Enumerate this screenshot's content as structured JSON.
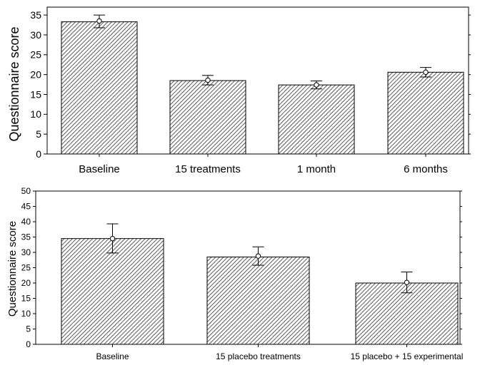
{
  "chart_data": [
    {
      "type": "bar",
      "title": "",
      "ylabel": "Questionnaire score",
      "xlabel": "",
      "categories": [
        "Baseline",
        "15 treatments",
        "1 month",
        "6 months"
      ],
      "values": [
        33.3,
        18.5,
        17.4,
        20.6
      ],
      "means": [
        33.5,
        18.6,
        17.4,
        20.6
      ],
      "error_low": [
        31.8,
        17.4,
        16.4,
        19.4
      ],
      "error_high": [
        35.0,
        19.8,
        18.4,
        21.8
      ],
      "ylim": [
        0,
        37
      ],
      "yticks": [
        0,
        5,
        10,
        15,
        20,
        25,
        30,
        35
      ],
      "grid": false,
      "bar_fill": "hatched"
    },
    {
      "type": "bar",
      "title": "",
      "ylabel": "Questionnaire score",
      "xlabel": "",
      "categories": [
        "Baseline",
        "15 placebo treatments",
        "15 placebo + 15 experimental"
      ],
      "values": [
        34.5,
        28.5,
        20.0
      ],
      "means": [
        34.5,
        28.8,
        20.2
      ],
      "error_low": [
        29.8,
        25.8,
        16.8
      ],
      "error_high": [
        39.3,
        31.8,
        23.6
      ],
      "ylim": [
        0,
        50
      ],
      "yticks": [
        0,
        5,
        10,
        15,
        20,
        25,
        30,
        35,
        40,
        45,
        50
      ],
      "grid": false,
      "bar_fill": "hatched"
    }
  ]
}
